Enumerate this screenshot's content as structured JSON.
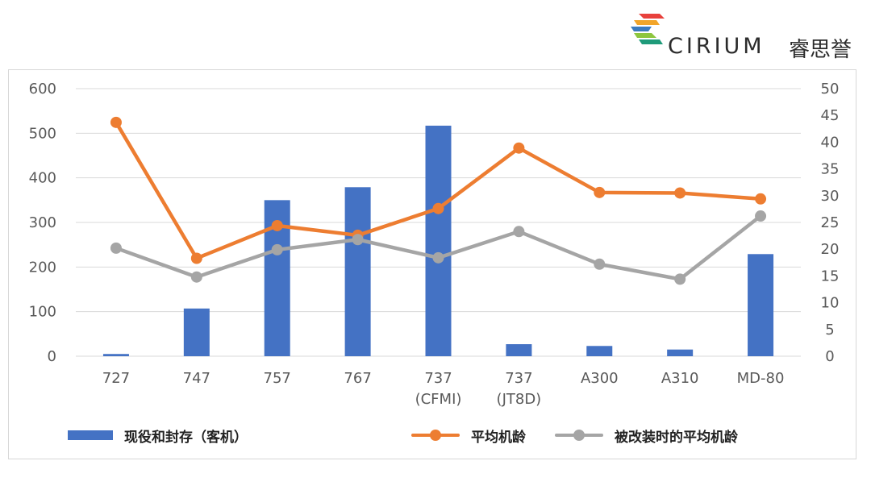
{
  "brand": {
    "name": "CIRIUM",
    "name_cn": "睿思誉",
    "logo_colors": [
      "#e8413c",
      "#f2a52a",
      "#8dc63f",
      "#1f9b7a",
      "#3c7bbf"
    ]
  },
  "chart_data": {
    "type": "bar+line",
    "categories": [
      "727",
      "747",
      "757",
      "767",
      "737 (CFMI)",
      "737 (JT8D)",
      "A300",
      "A310",
      "MD-80"
    ],
    "category_lines": [
      [
        "727"
      ],
      [
        "747"
      ],
      [
        "757"
      ],
      [
        "767"
      ],
      [
        "737",
        "(CFMI)"
      ],
      [
        "737",
        "(JT8D)"
      ],
      [
        "A300"
      ],
      [
        "A310"
      ],
      [
        "MD-80"
      ]
    ],
    "y_left": {
      "min": 0,
      "max": 600,
      "ticks": [
        0,
        100,
        200,
        300,
        400,
        500,
        600
      ]
    },
    "y_right": {
      "min": 0,
      "max": 50,
      "ticks": [
        0,
        5,
        10,
        15,
        20,
        25,
        30,
        35,
        40,
        45,
        50
      ]
    },
    "grid": true,
    "legend_position": "bottom",
    "series": [
      {
        "name": "现役和封存（客机）",
        "kind": "bar",
        "axis": "left",
        "color": "#4472c4",
        "values": [
          5,
          107,
          350,
          379,
          517,
          27,
          23,
          15,
          229
        ]
      },
      {
        "name": "平均机龄",
        "kind": "line",
        "axis": "right",
        "color": "#ed7d31",
        "values": [
          43.7,
          18.3,
          24.4,
          22.6,
          27.6,
          38.9,
          30.6,
          30.5,
          29.4
        ]
      },
      {
        "name": "被改装时的平均机龄",
        "kind": "line",
        "axis": "right",
        "color": "#a5a5a5",
        "values": [
          20.2,
          14.8,
          19.9,
          21.8,
          18.4,
          23.3,
          17.2,
          14.4,
          26.2
        ]
      }
    ]
  }
}
